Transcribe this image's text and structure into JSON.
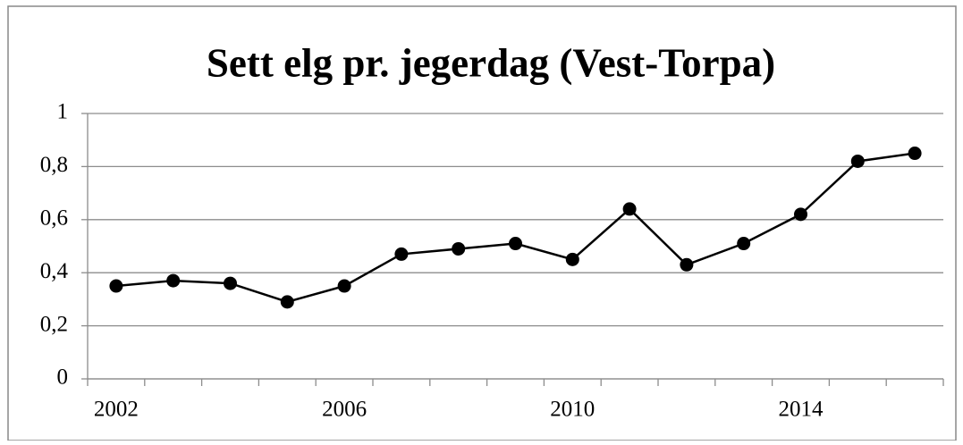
{
  "chart_data": {
    "type": "line",
    "title": "Sett elg pr. jegerdag (Vest-Torpa)",
    "categories": [
      "2002",
      null,
      null,
      null,
      "2006",
      null,
      null,
      null,
      "2010",
      null,
      null,
      null,
      "2014",
      null,
      null
    ],
    "values": [
      0.35,
      0.37,
      0.36,
      0.29,
      0.35,
      0.47,
      0.49,
      0.51,
      0.45,
      0.64,
      0.43,
      0.51,
      0.62,
      0.82,
      0.85
    ],
    "color": "#000000",
    "ylim": [
      0,
      1
    ],
    "yticks": [
      0,
      {
        "value": 0.2,
        "label": "0,2"
      },
      {
        "value": 0.4,
        "label": "0,4"
      },
      {
        "value": 0.6,
        "label": "0,6"
      },
      {
        "value": 0.8,
        "label": "0,8"
      },
      1
    ],
    "grid": true
  }
}
